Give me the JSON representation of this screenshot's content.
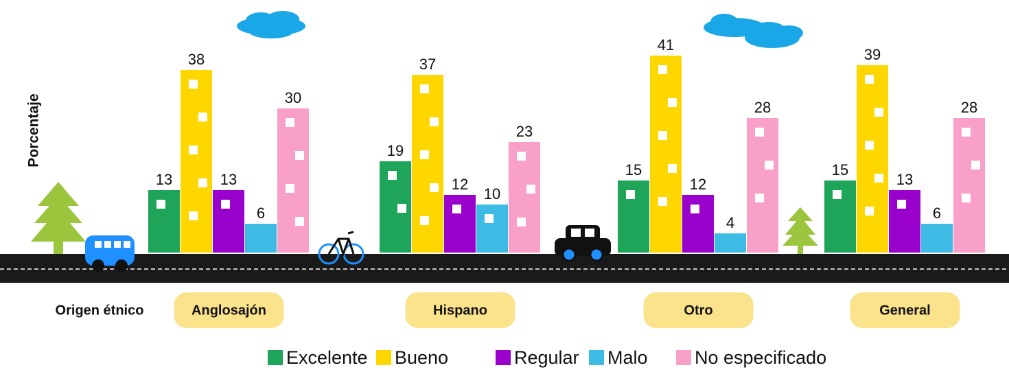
{
  "chart_data": {
    "type": "bar",
    "y_label": "Porcentaje",
    "x_label": "Origen étnico",
    "categories": [
      "Anglosajón",
      "Hispano",
      "Otro",
      "General"
    ],
    "series": [
      {
        "name": "Excelente",
        "color": "#1fa55a",
        "values": [
          13,
          19,
          15,
          15
        ]
      },
      {
        "name": "Bueno",
        "color": "#ffd700",
        "values": [
          38,
          37,
          41,
          39
        ]
      },
      {
        "name": "Regular",
        "color": "#9900cc",
        "values": [
          13,
          12,
          12,
          13
        ]
      },
      {
        "name": "Malo",
        "color": "#3dbbe5",
        "values": [
          6,
          10,
          4,
          6
        ]
      },
      {
        "name": "No especificado",
        "color": "#f9a0c8",
        "values": [
          30,
          23,
          28,
          28
        ]
      }
    ]
  }
}
